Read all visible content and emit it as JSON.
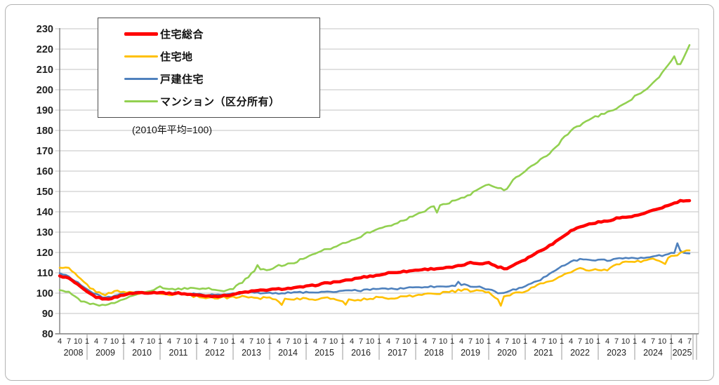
{
  "figure": {
    "note_label": "(2010年平均=100)"
  },
  "chart_data": {
    "type": "line",
    "note": "(2010年平均=100)",
    "grid": "horizontal",
    "legend_position": "top-left box",
    "y_axis": {
      "min": 80,
      "max": 230,
      "step": 10
    },
    "x_axis": {
      "start": "2008-04",
      "end": "2025-07",
      "tick_month_pattern": "4 7 10 1",
      "years": [
        {
          "year": "2008",
          "months": [
            4,
            7,
            10
          ]
        },
        {
          "year": "2009",
          "months": [
            1,
            4,
            7,
            10
          ]
        },
        {
          "year": "2010",
          "months": [
            1,
            4,
            7,
            10
          ]
        },
        {
          "year": "2011",
          "months": [
            1,
            4,
            7,
            10
          ]
        },
        {
          "year": "2012",
          "months": [
            1,
            4,
            7,
            10
          ]
        },
        {
          "year": "2013",
          "months": [
            1,
            4,
            7,
            10
          ]
        },
        {
          "year": "2014",
          "months": [
            1,
            4,
            7,
            10
          ]
        },
        {
          "year": "2015",
          "months": [
            1,
            4,
            7,
            10
          ]
        },
        {
          "year": "2016",
          "months": [
            1,
            4,
            7,
            10
          ]
        },
        {
          "year": "2017",
          "months": [
            1,
            4,
            7,
            10
          ]
        },
        {
          "year": "2018",
          "months": [
            1,
            4,
            7,
            10
          ]
        },
        {
          "year": "2019",
          "months": [
            1,
            4,
            7,
            10
          ]
        },
        {
          "year": "2020",
          "months": [
            1,
            4,
            7,
            10
          ]
        },
        {
          "year": "2021",
          "months": [
            1,
            4,
            7,
            10
          ]
        },
        {
          "year": "2022",
          "months": [
            1,
            4,
            7,
            10
          ]
        },
        {
          "year": "2023",
          "months": [
            1,
            4,
            7,
            10
          ]
        },
        {
          "year": "2024",
          "months": [
            1,
            4,
            7,
            10
          ]
        },
        {
          "year": "2025",
          "months": [
            1,
            4,
            7
          ]
        }
      ]
    },
    "sampling": "quarterly",
    "categories": [
      "2008-04",
      "2008-07",
      "2008-10",
      "2009-01",
      "2009-04",
      "2009-07",
      "2009-10",
      "2010-01",
      "2010-04",
      "2010-07",
      "2010-10",
      "2011-01",
      "2011-04",
      "2011-07",
      "2011-10",
      "2012-01",
      "2012-04",
      "2012-07",
      "2012-10",
      "2013-01",
      "2013-04",
      "2013-07",
      "2013-10",
      "2014-01",
      "2014-04",
      "2014-07",
      "2014-10",
      "2015-01",
      "2015-04",
      "2015-07",
      "2015-10",
      "2016-01",
      "2016-04",
      "2016-07",
      "2016-10",
      "2017-01",
      "2017-04",
      "2017-07",
      "2017-10",
      "2018-01",
      "2018-04",
      "2018-07",
      "2018-10",
      "2019-01",
      "2019-04",
      "2019-07",
      "2019-10",
      "2020-01",
      "2020-04",
      "2020-07",
      "2020-10",
      "2021-01",
      "2021-04",
      "2021-07",
      "2021-10",
      "2022-01",
      "2022-04",
      "2022-07",
      "2022-10",
      "2023-01",
      "2023-04",
      "2023-07",
      "2023-10",
      "2024-01",
      "2024-04",
      "2024-07",
      "2024-10",
      "2025-01",
      "2025-04",
      "2025-07"
    ],
    "series": [
      {
        "name": "住宅総合",
        "color": "#ff0000",
        "values": [
          108.5,
          107.3,
          104.0,
          100.5,
          98.0,
          97.0,
          97.8,
          99.2,
          100.0,
          100.3,
          100.2,
          100.4,
          99.8,
          100.0,
          99.5,
          99.0,
          98.7,
          98.5,
          98.7,
          99.4,
          100.3,
          100.9,
          101.3,
          101.7,
          102.0,
          102.3,
          102.7,
          103.3,
          103.9,
          104.8,
          105.4,
          105.9,
          106.7,
          107.7,
          108.3,
          108.9,
          109.9,
          110.4,
          110.7,
          111.3,
          111.7,
          112.0,
          112.3,
          112.7,
          113.6,
          114.9,
          114.6,
          114.9,
          112.9,
          112.0,
          114.6,
          116.6,
          119.2,
          121.7,
          124.2,
          127.6,
          130.6,
          132.6,
          133.9,
          134.9,
          135.4,
          136.9,
          137.3,
          137.9,
          139.1,
          140.6,
          142.1,
          143.6,
          145.3,
          145.5
        ],
        "notable_points": {}
      },
      {
        "name": "住宅地",
        "color": "#ffc000",
        "values": [
          112.5,
          112.2,
          108.0,
          104.0,
          100.5,
          99.5,
          101.0,
          100.3,
          100.5,
          99.8,
          100.0,
          99.6,
          99.3,
          99.8,
          99.0,
          98.3,
          98.0,
          97.6,
          97.8,
          98.0,
          98.3,
          98.0,
          97.6,
          98.2,
          96.0,
          97.5,
          97.0,
          97.3,
          97.0,
          97.5,
          97.2,
          96.2,
          97.0,
          96.6,
          97.5,
          97.8,
          97.5,
          98.0,
          98.4,
          98.8,
          99.5,
          99.8,
          100.2,
          100.8,
          101.5,
          101.2,
          101.0,
          100.5,
          96.5,
          99.0,
          100.0,
          101.2,
          103.0,
          105.0,
          106.5,
          108.2,
          110.5,
          112.2,
          110.8,
          111.5,
          111.0,
          114.5,
          115.0,
          115.5,
          116.0,
          116.5,
          115.5,
          117.8,
          119.5,
          121.0
        ],
        "notable_points": {
          "2014-05": 94.2,
          "2016-02": 94.3,
          "2020-05": 93.8,
          "2024-11": 114.3
        }
      },
      {
        "name": "戸建住宅",
        "color": "#4f81bd",
        "values": [
          109.8,
          108.2,
          105.2,
          101.8,
          99.2,
          97.8,
          98.6,
          99.6,
          100.2,
          100.4,
          100.1,
          100.3,
          99.9,
          100.2,
          99.8,
          99.4,
          99.2,
          99.0,
          99.3,
          99.6,
          100.0,
          100.3,
          100.1,
          100.4,
          99.8,
          100.3,
          100.2,
          100.5,
          100.4,
          100.8,
          100.6,
          101.0,
          101.3,
          101.2,
          101.8,
          102.0,
          102.3,
          102.1,
          102.5,
          102.8,
          103.0,
          103.2,
          103.1,
          103.6,
          104.3,
          103.5,
          103.0,
          101.8,
          100.2,
          100.6,
          102.0,
          103.2,
          105.2,
          107.5,
          110.2,
          113.2,
          115.5,
          116.5,
          116.0,
          116.6,
          116.2,
          116.8,
          117.0,
          117.2,
          117.6,
          118.0,
          118.5,
          119.5,
          120.5,
          119.5
        ],
        "notable_points": {
          "2019-03": 105.6,
          "2025-03": 124.5
        }
      },
      {
        "name": "マンション（区分所有）",
        "color": "#92d050",
        "values": [
          101.5,
          100.8,
          97.0,
          95.0,
          94.2,
          93.8,
          95.2,
          97.2,
          99.2,
          100.4,
          100.9,
          103.0,
          101.9,
          102.1,
          102.4,
          101.9,
          102.3,
          101.6,
          101.2,
          102.1,
          105.5,
          109.5,
          112.0,
          111.6,
          113.5,
          114.1,
          115.6,
          117.6,
          119.1,
          121.1,
          122.6,
          124.6,
          126.1,
          128.1,
          130.1,
          131.6,
          133.1,
          134.6,
          136.6,
          138.1,
          140.6,
          143.1,
          143.6,
          145.1,
          146.6,
          148.6,
          151.1,
          153.6,
          152.1,
          151.6,
          157.1,
          160.1,
          163.1,
          166.6,
          170.1,
          175.1,
          180.1,
          182.6,
          185.6,
          187.1,
          189.1,
          190.6,
          193.1,
          196.6,
          199.6,
          203.1,
          208.1,
          214.1,
          212.5,
          222.0
        ],
        "notable_points": {
          "2013-09": 113.8,
          "2018-08": 139.6,
          "2020-06": 150.6,
          "2025-02": 216.5
        }
      }
    ]
  }
}
